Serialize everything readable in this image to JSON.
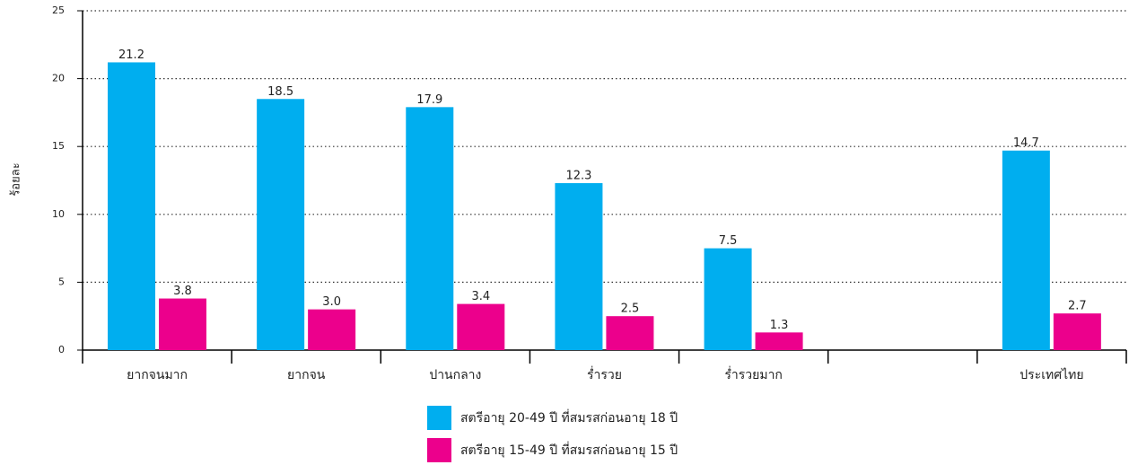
{
  "chart_data": {
    "type": "bar",
    "y_label": "ร้อยละ",
    "categories": [
      "ยากจนมาก",
      "ยากจน",
      "ปานกลาง",
      "ร่ำรวย",
      "ร่ำรวยมาก",
      null,
      "ประเทศไทย"
    ],
    "series": [
      {
        "name": "สตรีอายุ 20-49 ปี ที่สมรสก่อนอายุ 18 ปี",
        "color": "#00aeef",
        "values": [
          21.2,
          18.5,
          17.9,
          12.3,
          7.5,
          null,
          14.7
        ],
        "value_labels": [
          "21.2",
          "18.5",
          "17.9",
          "12.3",
          "7.5",
          null,
          "14.7"
        ]
      },
      {
        "name": "สตรีอายุ 15-49 ปี ที่สมรสก่อนอายุ 15 ปี",
        "color": "#ec008c",
        "values": [
          3.8,
          3,
          3.4,
          2.5,
          1.3,
          null,
          2.7
        ],
        "value_labels": [
          "3.8",
          "3.0",
          "3.4",
          "2.5",
          "1.3",
          null,
          "2.7"
        ]
      }
    ],
    "ylim": [
      0,
      25
    ],
    "yticks": [
      0,
      5,
      10,
      15,
      20,
      25
    ],
    "grid": true,
    "legend": "bottom"
  }
}
